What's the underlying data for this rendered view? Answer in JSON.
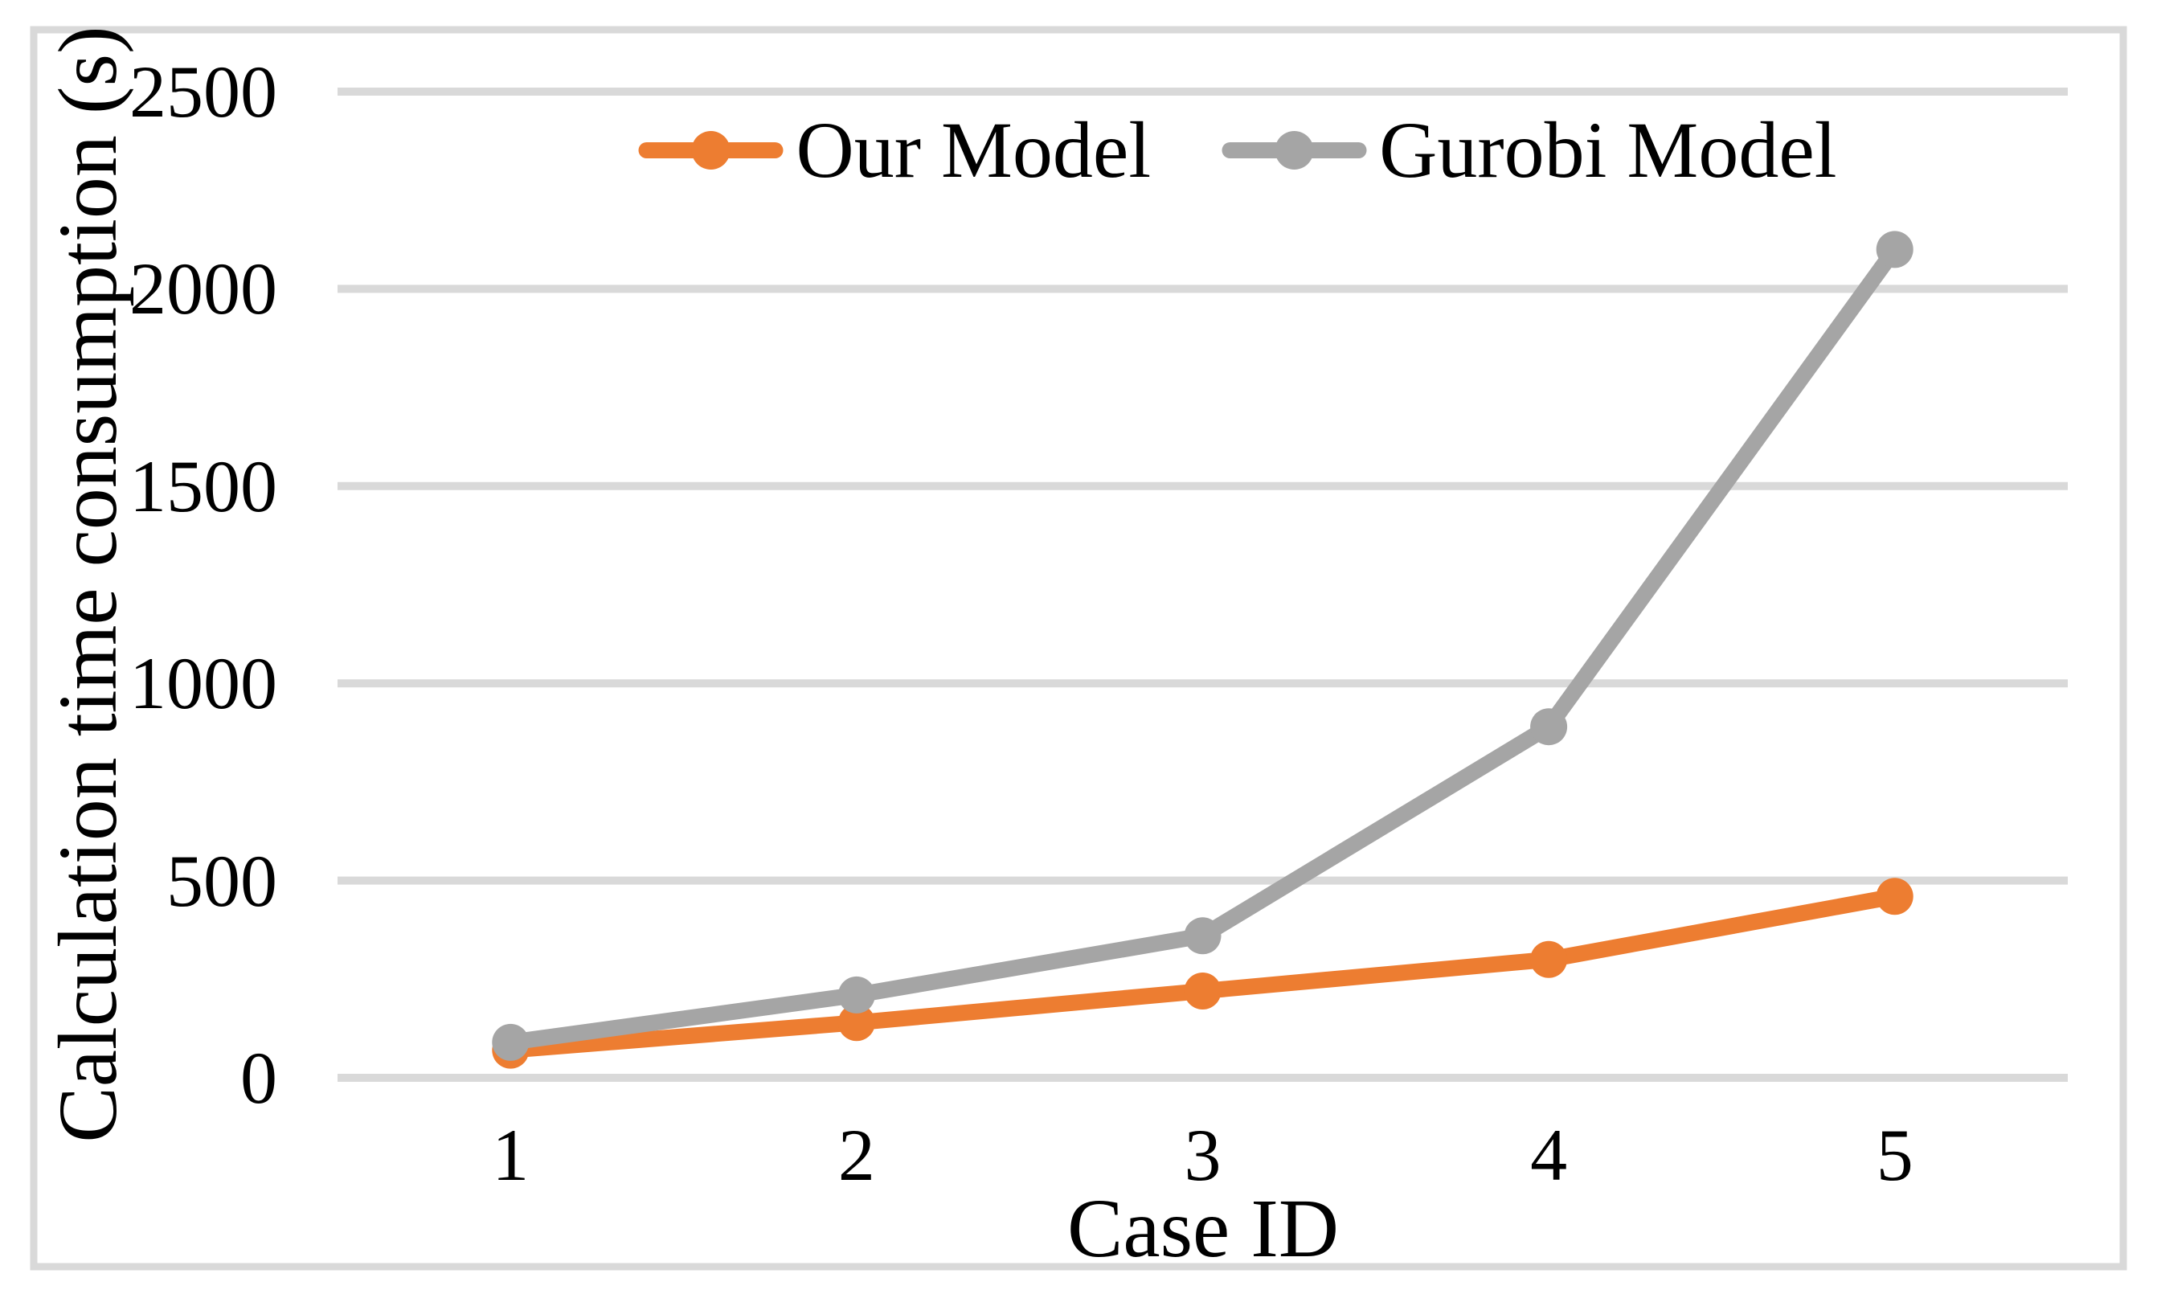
{
  "chart_data": {
    "type": "line",
    "categories": [
      "1",
      "2",
      "3",
      "4",
      "5"
    ],
    "series": [
      {
        "name": "Our Model",
        "color": "#ED7D31",
        "values": [
          70,
          140,
          220,
          300,
          460
        ]
      },
      {
        "name": "Gurobi Model",
        "color": "#A5A5A5",
        "values": [
          90,
          210,
          360,
          890,
          2100
        ]
      }
    ],
    "xlabel": "Case ID",
    "ylabel": "Calculation time consumption (s)",
    "ylim": [
      0,
      2500
    ],
    "ytick_interval": 500,
    "ytick_labels": [
      "0",
      "500",
      "1000",
      "1500",
      "2000",
      "2500"
    ],
    "xtick_labels": [
      "1",
      "2",
      "3",
      "4",
      "5"
    ],
    "grid": "horizontal",
    "legend_position": "top-center",
    "draw_order_note": "gray series drawn on top of orange",
    "colors": {
      "gridline": "#D9D9D9",
      "chart_border": "#D9D9D9",
      "background": "#FFFFFF",
      "text": "#000000"
    }
  }
}
